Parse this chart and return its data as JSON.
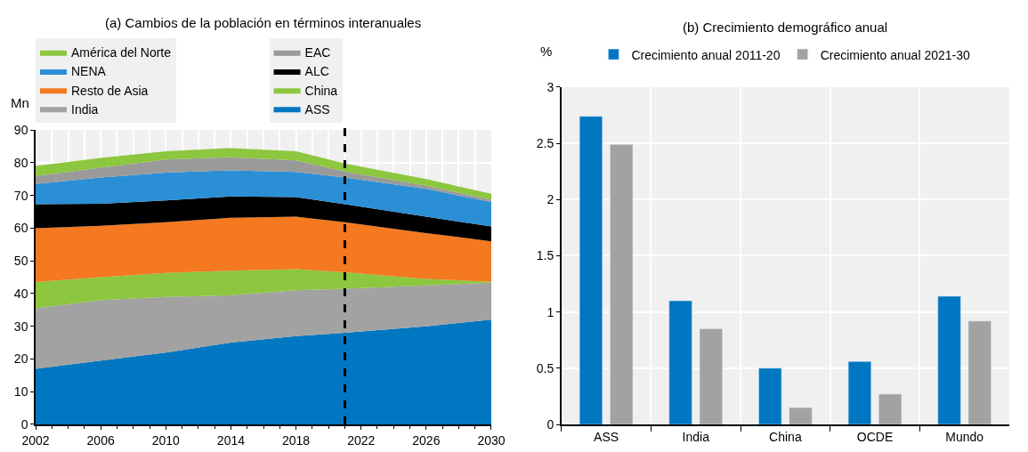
{
  "chart_data": [
    {
      "type": "area",
      "title": "(a) Cambios de la población en términos interanuales",
      "ylabel": "Mn",
      "stacked": true,
      "x": [
        2002,
        2006,
        2010,
        2014,
        2018,
        2021,
        2026,
        2030
      ],
      "series": [
        {
          "name": "ASS",
          "color": "#0077c0",
          "values": [
            17,
            19.5,
            22,
            25,
            27,
            28,
            30,
            32
          ]
        },
        {
          "name": "India",
          "color": "#a2a2a2",
          "values": [
            18.5,
            18.5,
            17,
            14.5,
            14,
            13.5,
            12.5,
            11.3
          ]
        },
        {
          "name": "China",
          "color": "#8dc63f",
          "values": [
            8,
            7,
            7.3,
            7.5,
            6.5,
            5,
            2,
            0.3
          ]
        },
        {
          "name": "Resto de Asia",
          "color": "#f47920",
          "values": [
            16.5,
            15.7,
            15.5,
            16.2,
            16,
            15.3,
            14,
            12.4
          ]
        },
        {
          "name": "ALC",
          "color": "#000000",
          "values": [
            7.3,
            6.8,
            6.7,
            6.5,
            6,
            5.5,
            5,
            4.5
          ]
        },
        {
          "name": "NENA",
          "color": "#2b8fd6",
          "values": [
            6.2,
            8,
            8.5,
            8,
            7.7,
            8.2,
            8.5,
            7.5
          ]
        },
        {
          "name": "EAC",
          "color": "#9a9a9a",
          "values": [
            2.5,
            3,
            4,
            4,
            3.5,
            1.8,
            1,
            0.7
          ]
        },
        {
          "name": "América del Norte",
          "color": "#8dc63f",
          "values": [
            3,
            3,
            2.5,
            2.8,
            2.8,
            2.5,
            2,
            1.8
          ]
        }
      ],
      "xlim": [
        2002,
        2030
      ],
      "xticks": [
        2002,
        2006,
        2010,
        2014,
        2018,
        2022,
        2026,
        2030
      ],
      "ylim": [
        0,
        90
      ],
      "yticks": [
        0,
        10,
        20,
        30,
        40,
        50,
        60,
        70,
        80,
        90
      ],
      "ref_lines": [
        {
          "axis": "x",
          "value": 2021,
          "color": "#000000",
          "line_style": "dashed"
        }
      ],
      "grid": true,
      "legend": "top"
    },
    {
      "type": "bar",
      "title": "(b) Crecimiento demográfico anual",
      "ylabel": "%",
      "categories": [
        "ASS",
        "India",
        "China",
        "OCDE",
        "Mundo"
      ],
      "series": [
        {
          "name": "Crecimiento anual 2011-20",
          "color": "#0077c0",
          "values": [
            2.74,
            1.1,
            0.5,
            0.56,
            1.14
          ]
        },
        {
          "name": "Crecimiento anual 2021-30",
          "color": "#a2a2a2",
          "values": [
            2.49,
            0.85,
            0.15,
            0.27,
            0.92
          ]
        }
      ],
      "ylim": [
        0,
        3
      ],
      "yticks": [
        0,
        {
          "value": 0.5,
          "label": "0.5"
        },
        1,
        {
          "value": 1.5,
          "label": "1.5"
        },
        2,
        {
          "value": 2.5,
          "label": "2.5"
        },
        3
      ],
      "grid": true,
      "legend": "top"
    }
  ]
}
